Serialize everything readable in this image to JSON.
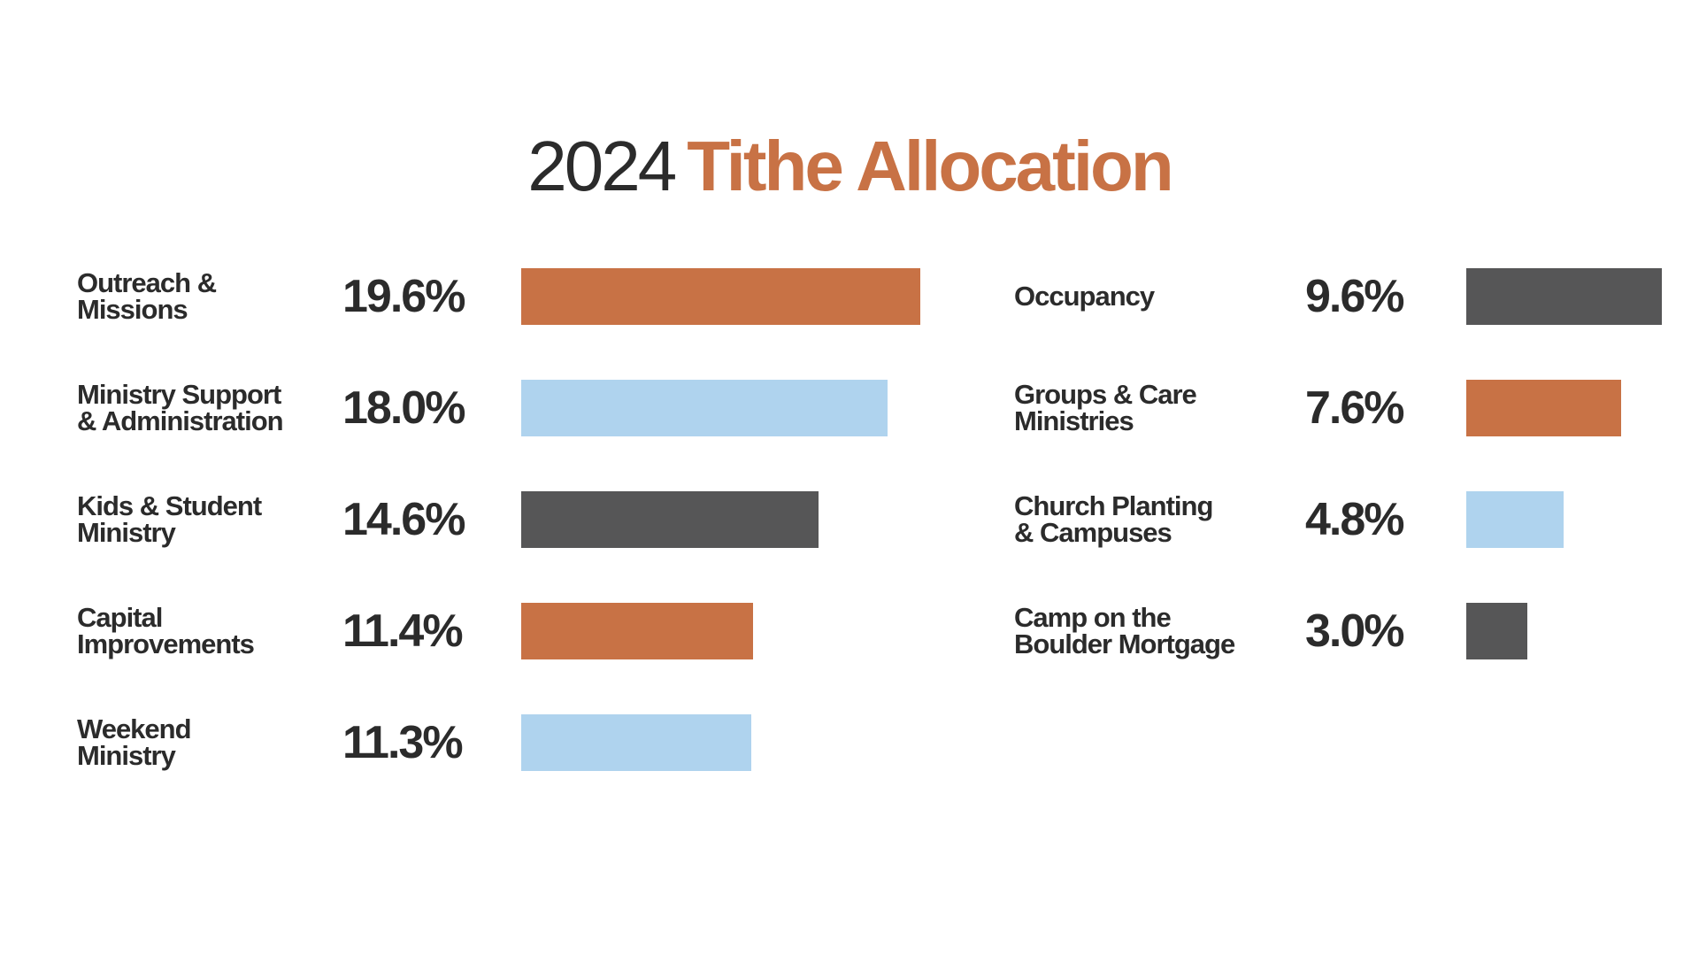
{
  "title": {
    "year": "2024",
    "main": "Tithe Allocation"
  },
  "colors": {
    "text": "#2b2b2b",
    "accent": "#c87245",
    "orange": "#c87245",
    "blue": "#afd3ee",
    "gray": "#565657"
  },
  "chart_data": {
    "type": "bar",
    "title": "2024 Tithe Allocation",
    "orientation": "horizontal",
    "unit": "%",
    "columns": [
      {
        "items": [
          {
            "label": "Outreach &\nMissions",
            "value": 19.6,
            "display": "19.6%",
            "color": "orange"
          },
          {
            "label": "Ministry Support\n& Administration",
            "value": 18.0,
            "display": "18.0%",
            "color": "blue"
          },
          {
            "label": "Kids & Student\nMinistry",
            "value": 14.6,
            "display": "14.6%",
            "color": "gray"
          },
          {
            "label": "Capital\nImprovements",
            "value": 11.4,
            "display": "11.4%",
            "color": "orange"
          },
          {
            "label": "Weekend\nMinistry",
            "value": 11.3,
            "display": "11.3%",
            "color": "blue"
          }
        ]
      },
      {
        "items": [
          {
            "label": "Occupancy",
            "value": 9.6,
            "display": "9.6%",
            "color": "gray"
          },
          {
            "label": "Groups & Care\nMinistries",
            "value": 7.6,
            "display": "7.6%",
            "color": "orange"
          },
          {
            "label": "Church Planting\n& Campuses",
            "value": 4.8,
            "display": "4.8%",
            "color": "blue"
          },
          {
            "label": "Camp on the\nBoulder Mortgage",
            "value": 3.0,
            "display": "3.0%",
            "color": "gray"
          }
        ]
      }
    ]
  }
}
